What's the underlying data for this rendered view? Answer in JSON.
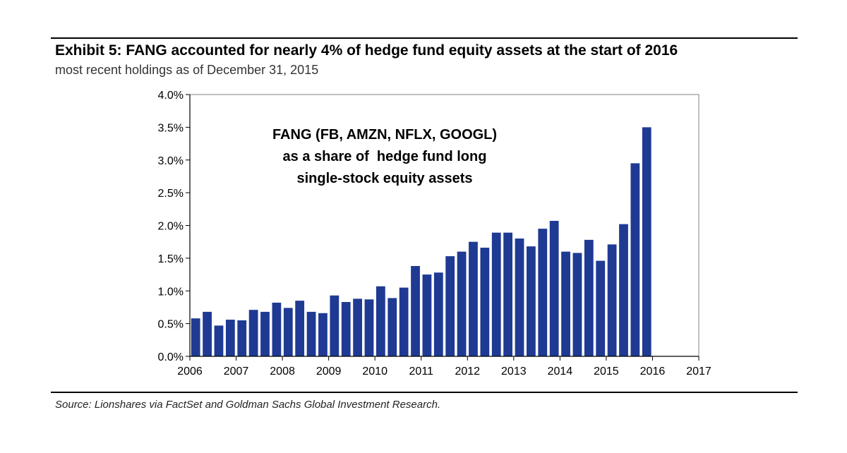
{
  "header": {
    "title": "Exhibit 5: FANG accounted for nearly 4% of hedge fund equity assets at the start of 2016",
    "subtitle": "most recent holdings as of December 31, 2015"
  },
  "footer": {
    "source": "Source: Lionshares via FactSet and Goldman Sachs Global Investment Research."
  },
  "colors": {
    "bar": "#1f3a93",
    "frame": "#808080"
  },
  "chart_data": {
    "type": "bar",
    "title": "Exhibit 5: FANG accounted for nearly 4% of hedge fund equity assets at the start of 2016",
    "subtitle": "most recent holdings as of December 31, 2015",
    "xlabel": "",
    "ylabel": "",
    "xlim": [
      2006,
      2017
    ],
    "ylim": [
      0,
      0.04
    ],
    "x_ticks": [
      "2006",
      "2007",
      "2008",
      "2009",
      "2010",
      "2011",
      "2012",
      "2013",
      "2014",
      "2015",
      "2016",
      "2017"
    ],
    "y_ticks": [
      "0.0%",
      "0.5%",
      "1.0%",
      "1.5%",
      "2.0%",
      "2.5%",
      "3.0%",
      "3.5%",
      "4.0%"
    ],
    "grid": false,
    "annotation": [
      "FANG (FB, AMZN, NFLX, GOOGL)",
      "as a share of  hedge fund long",
      "single-stock equity assets"
    ],
    "x": [
      2006.125,
      2006.375,
      2006.625,
      2006.875,
      2007.125,
      2007.375,
      2007.625,
      2007.875,
      2008.125,
      2008.375,
      2008.625,
      2008.875,
      2009.125,
      2009.375,
      2009.625,
      2009.875,
      2010.125,
      2010.375,
      2010.625,
      2010.875,
      2011.125,
      2011.375,
      2011.625,
      2011.875,
      2012.125,
      2012.375,
      2012.625,
      2012.875,
      2013.125,
      2013.375,
      2013.625,
      2013.875,
      2014.125,
      2014.375,
      2014.625,
      2014.875,
      2015.125,
      2015.375,
      2015.625,
      2015.875
    ],
    "values": [
      0.0058,
      0.0068,
      0.0047,
      0.0056,
      0.0055,
      0.0071,
      0.0068,
      0.0082,
      0.0074,
      0.0085,
      0.0068,
      0.0066,
      0.0093,
      0.0083,
      0.0088,
      0.0087,
      0.0107,
      0.0089,
      0.0105,
      0.0138,
      0.0125,
      0.0128,
      0.0153,
      0.016,
      0.0175,
      0.0166,
      0.0189,
      0.0189,
      0.018,
      0.0168,
      0.0195,
      0.0207,
      0.016,
      0.0158,
      0.0178,
      0.0146,
      0.0171,
      0.0202,
      0.0295,
      0.035
    ]
  }
}
